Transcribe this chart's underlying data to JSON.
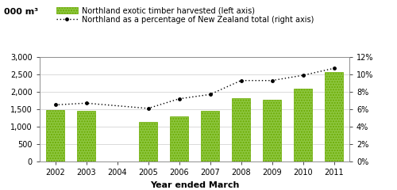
{
  "years": [
    2002,
    2003,
    2004,
    2005,
    2006,
    2007,
    2008,
    2009,
    2010,
    2011
  ],
  "bar_values": [
    1480,
    1460,
    null,
    1130,
    1300,
    1460,
    1820,
    1780,
    2080,
    2570
  ],
  "line_values": [
    6.5,
    6.7,
    null,
    6.1,
    7.2,
    7.7,
    9.3,
    9.3,
    9.9,
    10.7
  ],
  "bar_color": "#8dc63f",
  "bar_hatch": ".....",
  "bar_edge_color": "#6aaa00",
  "line_color": "#000000",
  "ylabel_left": "000 m³",
  "xlabel": "Year ended March",
  "ylim_left": [
    0,
    3000
  ],
  "ylim_right": [
    0,
    12
  ],
  "yticks_left": [
    0,
    500,
    1000,
    1500,
    2000,
    2500,
    3000
  ],
  "yticks_right": [
    0,
    2,
    4,
    6,
    8,
    10,
    12
  ],
  "ytick_labels_left": [
    "0",
    "500",
    "1,000",
    "1,500",
    "2,000",
    "2,500",
    "3,000"
  ],
  "ytick_labels_right": [
    "0%",
    "2%",
    "4%",
    "6%",
    "8%",
    "10%",
    "12%"
  ],
  "legend_bar_label": "Northland exotic timber harvested (left axis)",
  "legend_line_label": "Northland as a percentage of New Zealand total (right axis)",
  "bar_width": 0.6,
  "background_color": "#ffffff",
  "grid_color": "#cccccc",
  "font_size": 7,
  "xlabel_fontsize": 8
}
